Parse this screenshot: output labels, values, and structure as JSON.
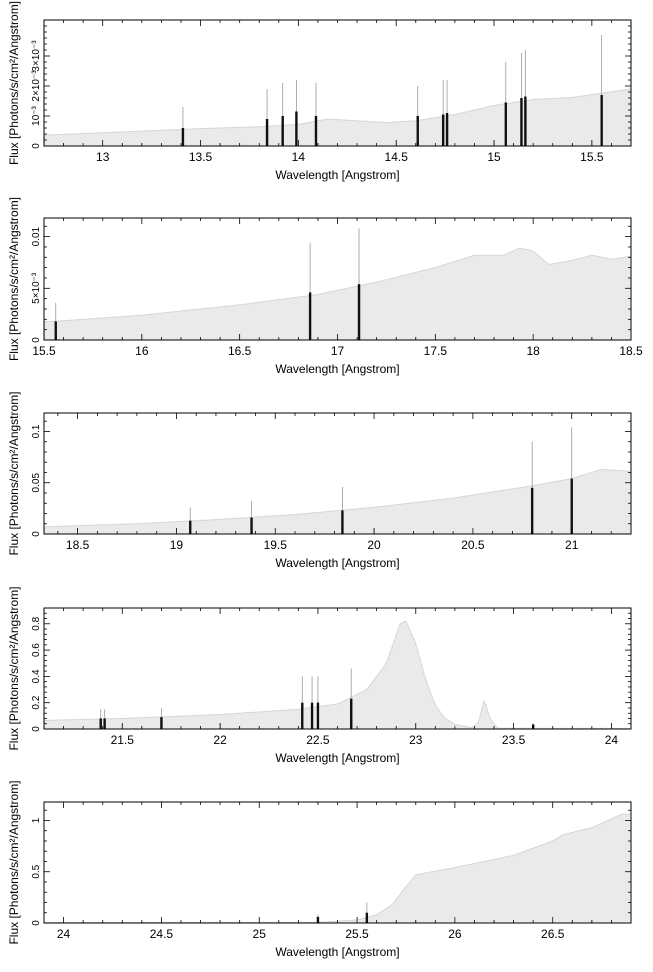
{
  "chart_data": [
    {
      "type": "bar",
      "xlabel": "Wavelength [Angstrom]",
      "ylabel": "Flux [Photons/s/cm²/Angstrom]",
      "xlim": [
        12.7,
        15.7
      ],
      "ylim": [
        0,
        0.0042
      ],
      "xticks": [
        {
          "v": 13,
          "label": "13"
        },
        {
          "v": 13.5,
          "label": "13.5"
        },
        {
          "v": 14,
          "label": "14"
        },
        {
          "v": 14.5,
          "label": "14.5"
        },
        {
          "v": 15,
          "label": "15"
        },
        {
          "v": 15.5,
          "label": "15.5"
        }
      ],
      "yticks": [
        {
          "v": 0,
          "label": "0"
        },
        {
          "v": 0.001,
          "label": "10⁻³"
        },
        {
          "v": 0.002,
          "label": "2×10⁻³"
        },
        {
          "v": 0.003,
          "label": "3×10⁻³"
        }
      ],
      "continuum": [
        [
          12.7,
          0.00036
        ],
        [
          13.0,
          0.00044
        ],
        [
          13.5,
          0.00058
        ],
        [
          13.8,
          0.00064
        ],
        [
          14.0,
          0.00072
        ],
        [
          14.15,
          0.0009
        ],
        [
          14.3,
          0.00084
        ],
        [
          14.45,
          0.00078
        ],
        [
          14.6,
          0.00084
        ],
        [
          14.8,
          0.00105
        ],
        [
          15.0,
          0.00135
        ],
        [
          15.2,
          0.00155
        ],
        [
          15.4,
          0.00162
        ],
        [
          15.7,
          0.0019
        ]
      ],
      "lines": [
        [
          13.41,
          0.0006,
          0.0013
        ],
        [
          13.84,
          0.0009,
          0.0019
        ],
        [
          13.92,
          0.001,
          0.0021
        ],
        [
          13.99,
          0.00115,
          0.0022
        ],
        [
          14.09,
          0.001,
          0.0021
        ],
        [
          14.61,
          0.001,
          0.002
        ],
        [
          14.74,
          0.00105,
          0.0022
        ],
        [
          14.76,
          0.0011,
          0.0022
        ],
        [
          15.06,
          0.00145,
          0.0028
        ],
        [
          15.14,
          0.0016,
          0.0031
        ],
        [
          15.16,
          0.00165,
          0.0032
        ],
        [
          15.55,
          0.0017,
          0.0037
        ]
      ]
    },
    {
      "type": "bar",
      "xlabel": "Wavelength [Angstrom]",
      "ylabel": "Flux [Photons/s/cm²/Angstrom]",
      "xlim": [
        15.5,
        18.5
      ],
      "ylim": [
        0,
        0.0118
      ],
      "xticks": [
        {
          "v": 15.5,
          "label": "15.5"
        },
        {
          "v": 16,
          "label": "16"
        },
        {
          "v": 16.5,
          "label": "16.5"
        },
        {
          "v": 17,
          "label": "17"
        },
        {
          "v": 17.5,
          "label": "17.5"
        },
        {
          "v": 18,
          "label": "18"
        },
        {
          "v": 18.5,
          "label": "18.5"
        }
      ],
      "yticks": [
        {
          "v": 0,
          "label": "0"
        },
        {
          "v": 0.005,
          "label": "5×10⁻³"
        },
        {
          "v": 0.01,
          "label": "0.01"
        }
      ],
      "continuum": [
        [
          15.55,
          0.0018
        ],
        [
          16.0,
          0.0024
        ],
        [
          16.5,
          0.0034
        ],
        [
          16.9,
          0.0044
        ],
        [
          17.2,
          0.0056
        ],
        [
          17.5,
          0.007
        ],
        [
          17.7,
          0.0082
        ],
        [
          17.85,
          0.0082
        ],
        [
          17.93,
          0.0089
        ],
        [
          18.0,
          0.0086
        ],
        [
          18.08,
          0.0073
        ],
        [
          18.2,
          0.0077
        ],
        [
          18.3,
          0.0082
        ],
        [
          18.4,
          0.0078
        ],
        [
          18.5,
          0.0081
        ]
      ],
      "lines": [
        [
          15.56,
          0.0018,
          0.0036
        ],
        [
          16.86,
          0.0046,
          0.0094
        ],
        [
          17.11,
          0.0054,
          0.0108
        ]
      ]
    },
    {
      "type": "bar",
      "xlabel": "Wavelength [Angstrom]",
      "ylabel": "Flux [Photons/s/cm²/Angstrom]",
      "xlim": [
        18.33,
        21.3
      ],
      "ylim": [
        0,
        0.118
      ],
      "xticks": [
        {
          "v": 18.5,
          "label": "18.5"
        },
        {
          "v": 19,
          "label": "19"
        },
        {
          "v": 19.5,
          "label": "19.5"
        },
        {
          "v": 20,
          "label": "20"
        },
        {
          "v": 20.5,
          "label": "20.5"
        },
        {
          "v": 21,
          "label": "21"
        }
      ],
      "yticks": [
        {
          "v": 0,
          "label": "0"
        },
        {
          "v": 0.05,
          "label": "0.05"
        },
        {
          "v": 0.1,
          "label": "0.1"
        }
      ],
      "continuum": [
        [
          18.33,
          0.007
        ],
        [
          18.8,
          0.01
        ],
        [
          19.2,
          0.014
        ],
        [
          19.6,
          0.019
        ],
        [
          20.0,
          0.026
        ],
        [
          20.4,
          0.035
        ],
        [
          20.8,
          0.047
        ],
        [
          21.0,
          0.054
        ],
        [
          21.1,
          0.06
        ],
        [
          21.15,
          0.063
        ],
        [
          21.3,
          0.061
        ]
      ],
      "lines": [
        [
          19.07,
          0.013,
          0.026
        ],
        [
          19.38,
          0.016,
          0.032
        ],
        [
          19.84,
          0.023,
          0.046
        ],
        [
          20.8,
          0.045,
          0.09
        ],
        [
          21.0,
          0.054,
          0.104
        ]
      ]
    },
    {
      "type": "bar",
      "xlabel": "Wavelength [Angstrom]",
      "ylabel": "Flux [Photons/s/cm²/Angstrom]",
      "xlim": [
        21.1,
        24.1
      ],
      "ylim": [
        0,
        0.92
      ],
      "xticks": [
        {
          "v": 21.5,
          "label": "21.5"
        },
        {
          "v": 22,
          "label": "22"
        },
        {
          "v": 22.5,
          "label": "22.5"
        },
        {
          "v": 23,
          "label": "23"
        },
        {
          "v": 23.5,
          "label": "23.5"
        },
        {
          "v": 24,
          "label": "24"
        }
      ],
      "yticks": [
        {
          "v": 0,
          "label": "0"
        },
        {
          "v": 0.2,
          "label": "0.2"
        },
        {
          "v": 0.4,
          "label": "0.4"
        },
        {
          "v": 0.6,
          "label": "0.6"
        },
        {
          "v": 0.8,
          "label": "0.8"
        }
      ],
      "continuum": [
        [
          21.1,
          0.065
        ],
        [
          21.5,
          0.08
        ],
        [
          22.0,
          0.11
        ],
        [
          22.4,
          0.15
        ],
        [
          22.6,
          0.19
        ],
        [
          22.75,
          0.3
        ],
        [
          22.85,
          0.5
        ],
        [
          22.92,
          0.8
        ],
        [
          22.95,
          0.82
        ],
        [
          23.0,
          0.65
        ],
        [
          23.05,
          0.38
        ],
        [
          23.1,
          0.18
        ],
        [
          23.15,
          0.08
        ],
        [
          23.2,
          0.035
        ],
        [
          23.25,
          0.02
        ],
        [
          23.29,
          0.01
        ],
        [
          23.32,
          0.05
        ],
        [
          23.35,
          0.22
        ],
        [
          23.38,
          0.08
        ],
        [
          23.42,
          0.005
        ],
        [
          23.6,
          0.005
        ],
        [
          24.1,
          0.004
        ]
      ],
      "lines": [
        [
          21.39,
          0.08,
          0.15
        ],
        [
          21.41,
          0.08,
          0.15
        ],
        [
          21.7,
          0.09,
          0.16
        ],
        [
          22.42,
          0.2,
          0.4
        ],
        [
          22.47,
          0.2,
          0.4
        ],
        [
          22.5,
          0.2,
          0.4
        ],
        [
          22.67,
          0.23,
          0.46
        ],
        [
          23.6,
          0.035,
          0.04
        ]
      ]
    },
    {
      "type": "bar",
      "xlabel": "Wavelength [Angstrom]",
      "ylabel": "Flux [Photons/s/cm²/Angstrom]",
      "xlim": [
        23.9,
        26.9
      ],
      "ylim": [
        0,
        1.18
      ],
      "xticks": [
        {
          "v": 24,
          "label": "24"
        },
        {
          "v": 24.5,
          "label": "24.5"
        },
        {
          "v": 25,
          "label": "25"
        },
        {
          "v": 25.5,
          "label": "25.5"
        },
        {
          "v": 26,
          "label": "26"
        },
        {
          "v": 26.5,
          "label": "26.5"
        }
      ],
      "yticks": [
        {
          "v": 0,
          "label": "0"
        },
        {
          "v": 0.5,
          "label": "0.5"
        },
        {
          "v": 1,
          "label": "1"
        }
      ],
      "continuum": [
        [
          23.9,
          0.005
        ],
        [
          25.3,
          0.006
        ],
        [
          25.5,
          0.03
        ],
        [
          25.6,
          0.08
        ],
        [
          25.68,
          0.18
        ],
        [
          25.74,
          0.33
        ],
        [
          25.8,
          0.47
        ],
        [
          26.0,
          0.54
        ],
        [
          26.3,
          0.66
        ],
        [
          26.5,
          0.8
        ],
        [
          26.55,
          0.86
        ],
        [
          26.7,
          0.93
        ],
        [
          26.85,
          1.06
        ],
        [
          26.9,
          1.06
        ]
      ],
      "lines": [
        [
          25.3,
          0.06,
          0.08
        ],
        [
          25.55,
          0.1,
          0.2
        ]
      ]
    }
  ]
}
